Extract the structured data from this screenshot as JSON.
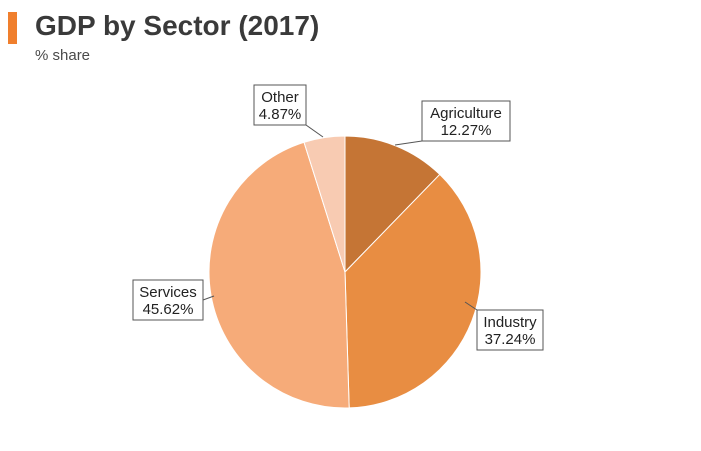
{
  "header": {
    "title": "GDP by Sector (2017)",
    "subtitle": "% share",
    "accent_color": "#F07F2D"
  },
  "chart_data": {
    "type": "pie",
    "title": "GDP by Sector (2017)",
    "subtitle": "% share",
    "slices": [
      {
        "label": "Agriculture",
        "value": 12.27,
        "value_label": "12.27%",
        "color": "#C57535"
      },
      {
        "label": "Industry",
        "value": 37.24,
        "value_label": "37.24%",
        "color": "#E88D42"
      },
      {
        "label": "Services",
        "value": 45.62,
        "value_label": "45.62%",
        "color": "#F6AB79"
      },
      {
        "label": "Other",
        "value": 4.87,
        "value_label": "4.87%",
        "color": "#F8CBB2"
      }
    ],
    "start": "12 o'clock",
    "direction": "clockwise",
    "labels": "callout boxes outside slices"
  }
}
